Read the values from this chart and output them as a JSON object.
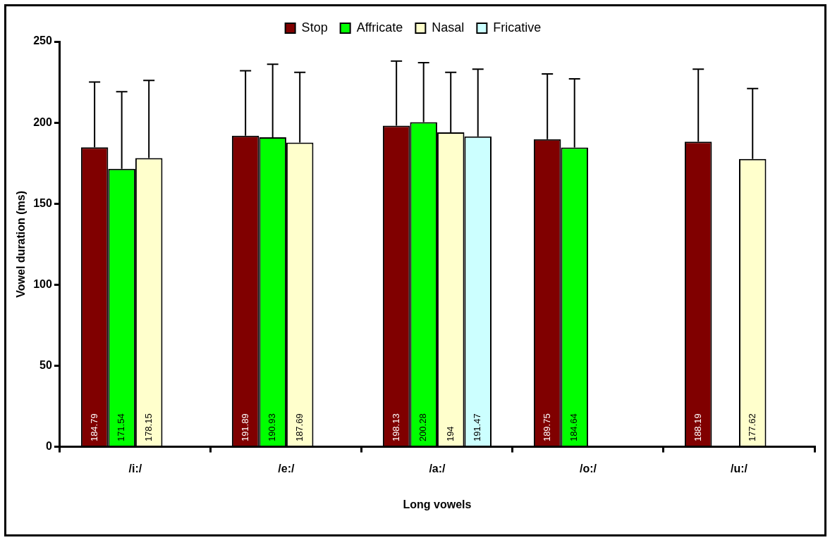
{
  "chart_data": {
    "type": "bar",
    "categories": [
      "/i:/",
      "/e:/",
      "/a:/",
      "/o:/",
      "/u:/"
    ],
    "xlabel": "Long vowels",
    "ylabel": "Vowel duration (ms)",
    "ylim": [
      0,
      250
    ],
    "yticks": [
      0,
      50,
      100,
      150,
      200,
      250
    ],
    "legend": "top",
    "data_labels": true,
    "series": [
      {
        "name": "Stop",
        "color": "#800000",
        "values": [
          184.79,
          191.89,
          198.13,
          189.75,
          188.19
        ],
        "errors": [
          [
            184.79,
            225
          ],
          [
            191.89,
            232
          ],
          [
            198.13,
            238
          ],
          [
            189.75,
            230
          ],
          [
            188.19,
            233
          ]
        ]
      },
      {
        "name": "Affricate",
        "color": "#00ff00",
        "values": [
          171.54,
          190.93,
          200.28,
          184.64,
          null
        ],
        "errors": [
          [
            171.54,
            219
          ],
          [
            190.93,
            236
          ],
          [
            200.28,
            237
          ],
          [
            184.64,
            227
          ],
          null
        ]
      },
      {
        "name": "Nasal",
        "color": "#ffffcc",
        "values": [
          178.15,
          187.69,
          194,
          null,
          177.62
        ],
        "errors": [
          [
            178.15,
            226
          ],
          [
            187.69,
            231
          ],
          [
            194,
            231
          ],
          null,
          [
            177.62,
            221
          ]
        ]
      },
      {
        "name": "Fricative",
        "color": "#ccffff",
        "values": [
          null,
          null,
          191.47,
          null,
          null
        ],
        "errors": [
          null,
          null,
          [
            191.47,
            233
          ],
          null,
          null
        ]
      }
    ]
  }
}
